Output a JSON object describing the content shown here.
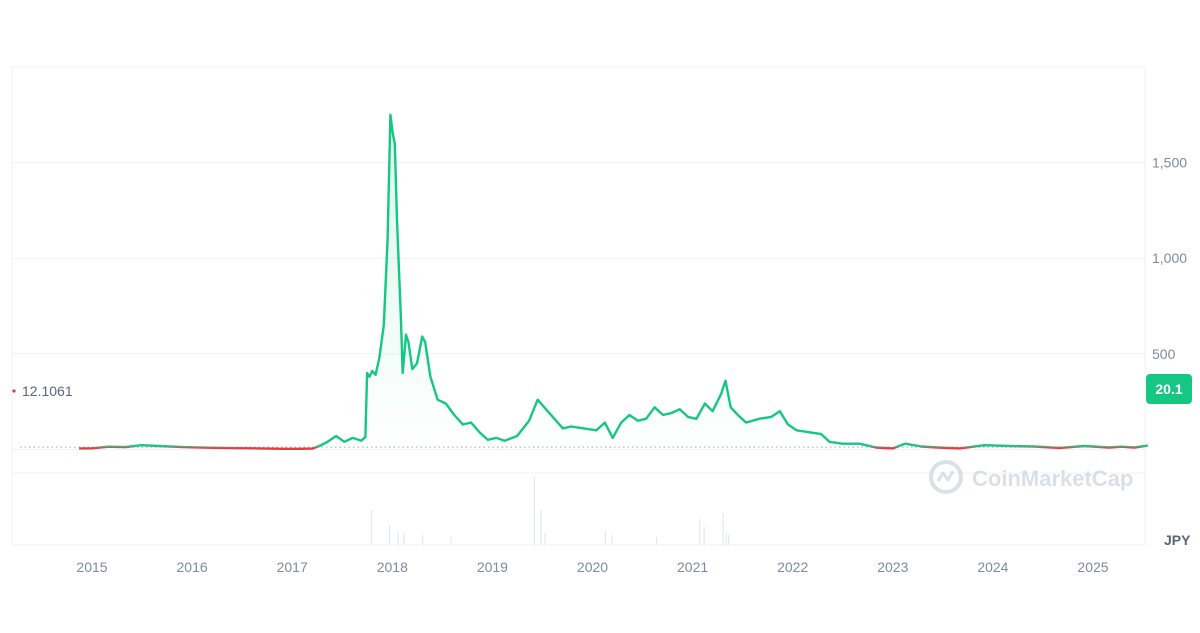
{
  "currency_label": "JPY",
  "watermark": "CoinMarketCap",
  "start_value_label": "12.1061",
  "current_value_label": "20.1",
  "colors": {
    "up": "#16c784",
    "down": "#ea3943",
    "grid": "#eff2f5",
    "axis_text": "#808a9d",
    "label_bg": "#16c784"
  },
  "chart_data": {
    "type": "area",
    "title": "",
    "xlabel": "",
    "ylabel": "JPY",
    "x_ticks": [
      "2015",
      "2016",
      "2017",
      "2018",
      "2019",
      "2020",
      "2021",
      "2022",
      "2023",
      "2024",
      "2025"
    ],
    "y_ticks": [
      500,
      1000,
      1500
    ],
    "y_tick_labels": [
      "500",
      "1,000",
      "1,500"
    ],
    "ylim": [
      -500,
      2000
    ],
    "grid": true,
    "baseline_value": 12.1061,
    "current_value": 20.1,
    "series": [
      {
        "values": [
          [
            "2014-11-15",
            5
          ],
          [
            "2015-01-01",
            6
          ],
          [
            "2015-03-01",
            14
          ],
          [
            "2015-05-01",
            12
          ],
          [
            "2015-07-01",
            22
          ],
          [
            "2015-09-01",
            18
          ],
          [
            "2015-12-01",
            12
          ],
          [
            "2016-03-01",
            9
          ],
          [
            "2016-06-01",
            7
          ],
          [
            "2016-09-01",
            5
          ],
          [
            "2016-12-01",
            3
          ],
          [
            "2017-02-01",
            3
          ],
          [
            "2017-03-15",
            4
          ],
          [
            "2017-04-10",
            18
          ],
          [
            "2017-05-10",
            40
          ],
          [
            "2017-06-10",
            70
          ],
          [
            "2017-07-10",
            40
          ],
          [
            "2017-08-10",
            60
          ],
          [
            "2017-09-10",
            45
          ],
          [
            "2017-09-25",
            65
          ],
          [
            "2017-10-01",
            400
          ],
          [
            "2017-10-10",
            380
          ],
          [
            "2017-10-20",
            410
          ],
          [
            "2017-11-01",
            390
          ],
          [
            "2017-11-15",
            480
          ],
          [
            "2017-12-01",
            650
          ],
          [
            "2017-12-15",
            1100
          ],
          [
            "2017-12-25",
            1750
          ],
          [
            "2018-01-03",
            1650
          ],
          [
            "2018-01-10",
            1600
          ],
          [
            "2018-01-18",
            1200
          ],
          [
            "2018-02-01",
            700
          ],
          [
            "2018-02-08",
            400
          ],
          [
            "2018-02-20",
            600
          ],
          [
            "2018-03-01",
            560
          ],
          [
            "2018-03-15",
            420
          ],
          [
            "2018-04-01",
            450
          ],
          [
            "2018-04-20",
            590
          ],
          [
            "2018-05-01",
            560
          ],
          [
            "2018-05-20",
            380
          ],
          [
            "2018-06-15",
            260
          ],
          [
            "2018-07-15",
            240
          ],
          [
            "2018-08-15",
            180
          ],
          [
            "2018-09-15",
            130
          ],
          [
            "2018-10-15",
            140
          ],
          [
            "2018-11-15",
            90
          ],
          [
            "2018-12-15",
            50
          ],
          [
            "2019-01-15",
            60
          ],
          [
            "2019-02-15",
            45
          ],
          [
            "2019-04-01",
            70
          ],
          [
            "2019-05-15",
            150
          ],
          [
            "2019-06-15",
            260
          ],
          [
            "2019-07-15",
            210
          ],
          [
            "2019-08-15",
            160
          ],
          [
            "2019-09-15",
            110
          ],
          [
            "2019-10-15",
            120
          ],
          [
            "2019-12-01",
            110
          ],
          [
            "2020-01-15",
            100
          ],
          [
            "2020-02-15",
            140
          ],
          [
            "2020-03-15",
            60
          ],
          [
            "2020-04-15",
            140
          ],
          [
            "2020-05-15",
            180
          ],
          [
            "2020-06-15",
            150
          ],
          [
            "2020-07-15",
            160
          ],
          [
            "2020-08-15",
            220
          ],
          [
            "2020-09-15",
            180
          ],
          [
            "2020-10-15",
            190
          ],
          [
            "2020-11-15",
            210
          ],
          [
            "2020-12-15",
            170
          ],
          [
            "2021-01-15",
            160
          ],
          [
            "2021-02-15",
            240
          ],
          [
            "2021-03-15",
            200
          ],
          [
            "2021-04-15",
            290
          ],
          [
            "2021-05-01",
            360
          ],
          [
            "2021-05-20",
            220
          ],
          [
            "2021-06-15",
            180
          ],
          [
            "2021-07-15",
            140
          ],
          [
            "2021-09-01",
            160
          ],
          [
            "2021-10-15",
            170
          ],
          [
            "2021-11-15",
            200
          ],
          [
            "2021-12-15",
            130
          ],
          [
            "2022-01-15",
            100
          ],
          [
            "2022-03-01",
            90
          ],
          [
            "2022-04-15",
            80
          ],
          [
            "2022-05-15",
            40
          ],
          [
            "2022-07-01",
            30
          ],
          [
            "2022-09-01",
            30
          ],
          [
            "2022-11-01",
            10
          ],
          [
            "2023-01-01",
            5
          ],
          [
            "2023-02-15",
            30
          ],
          [
            "2023-04-15",
            15
          ],
          [
            "2023-06-15",
            10
          ],
          [
            "2023-09-01",
            5
          ],
          [
            "2023-12-01",
            22
          ],
          [
            "2024-03-01",
            18
          ],
          [
            "2024-06-01",
            15
          ],
          [
            "2024-09-01",
            8
          ],
          [
            "2024-12-01",
            18
          ],
          [
            "2025-03-01",
            10
          ],
          [
            "2025-04-15",
            14
          ],
          [
            "2025-06-01",
            10
          ],
          [
            "2025-07-20",
            20.1
          ]
        ]
      }
    ]
  }
}
